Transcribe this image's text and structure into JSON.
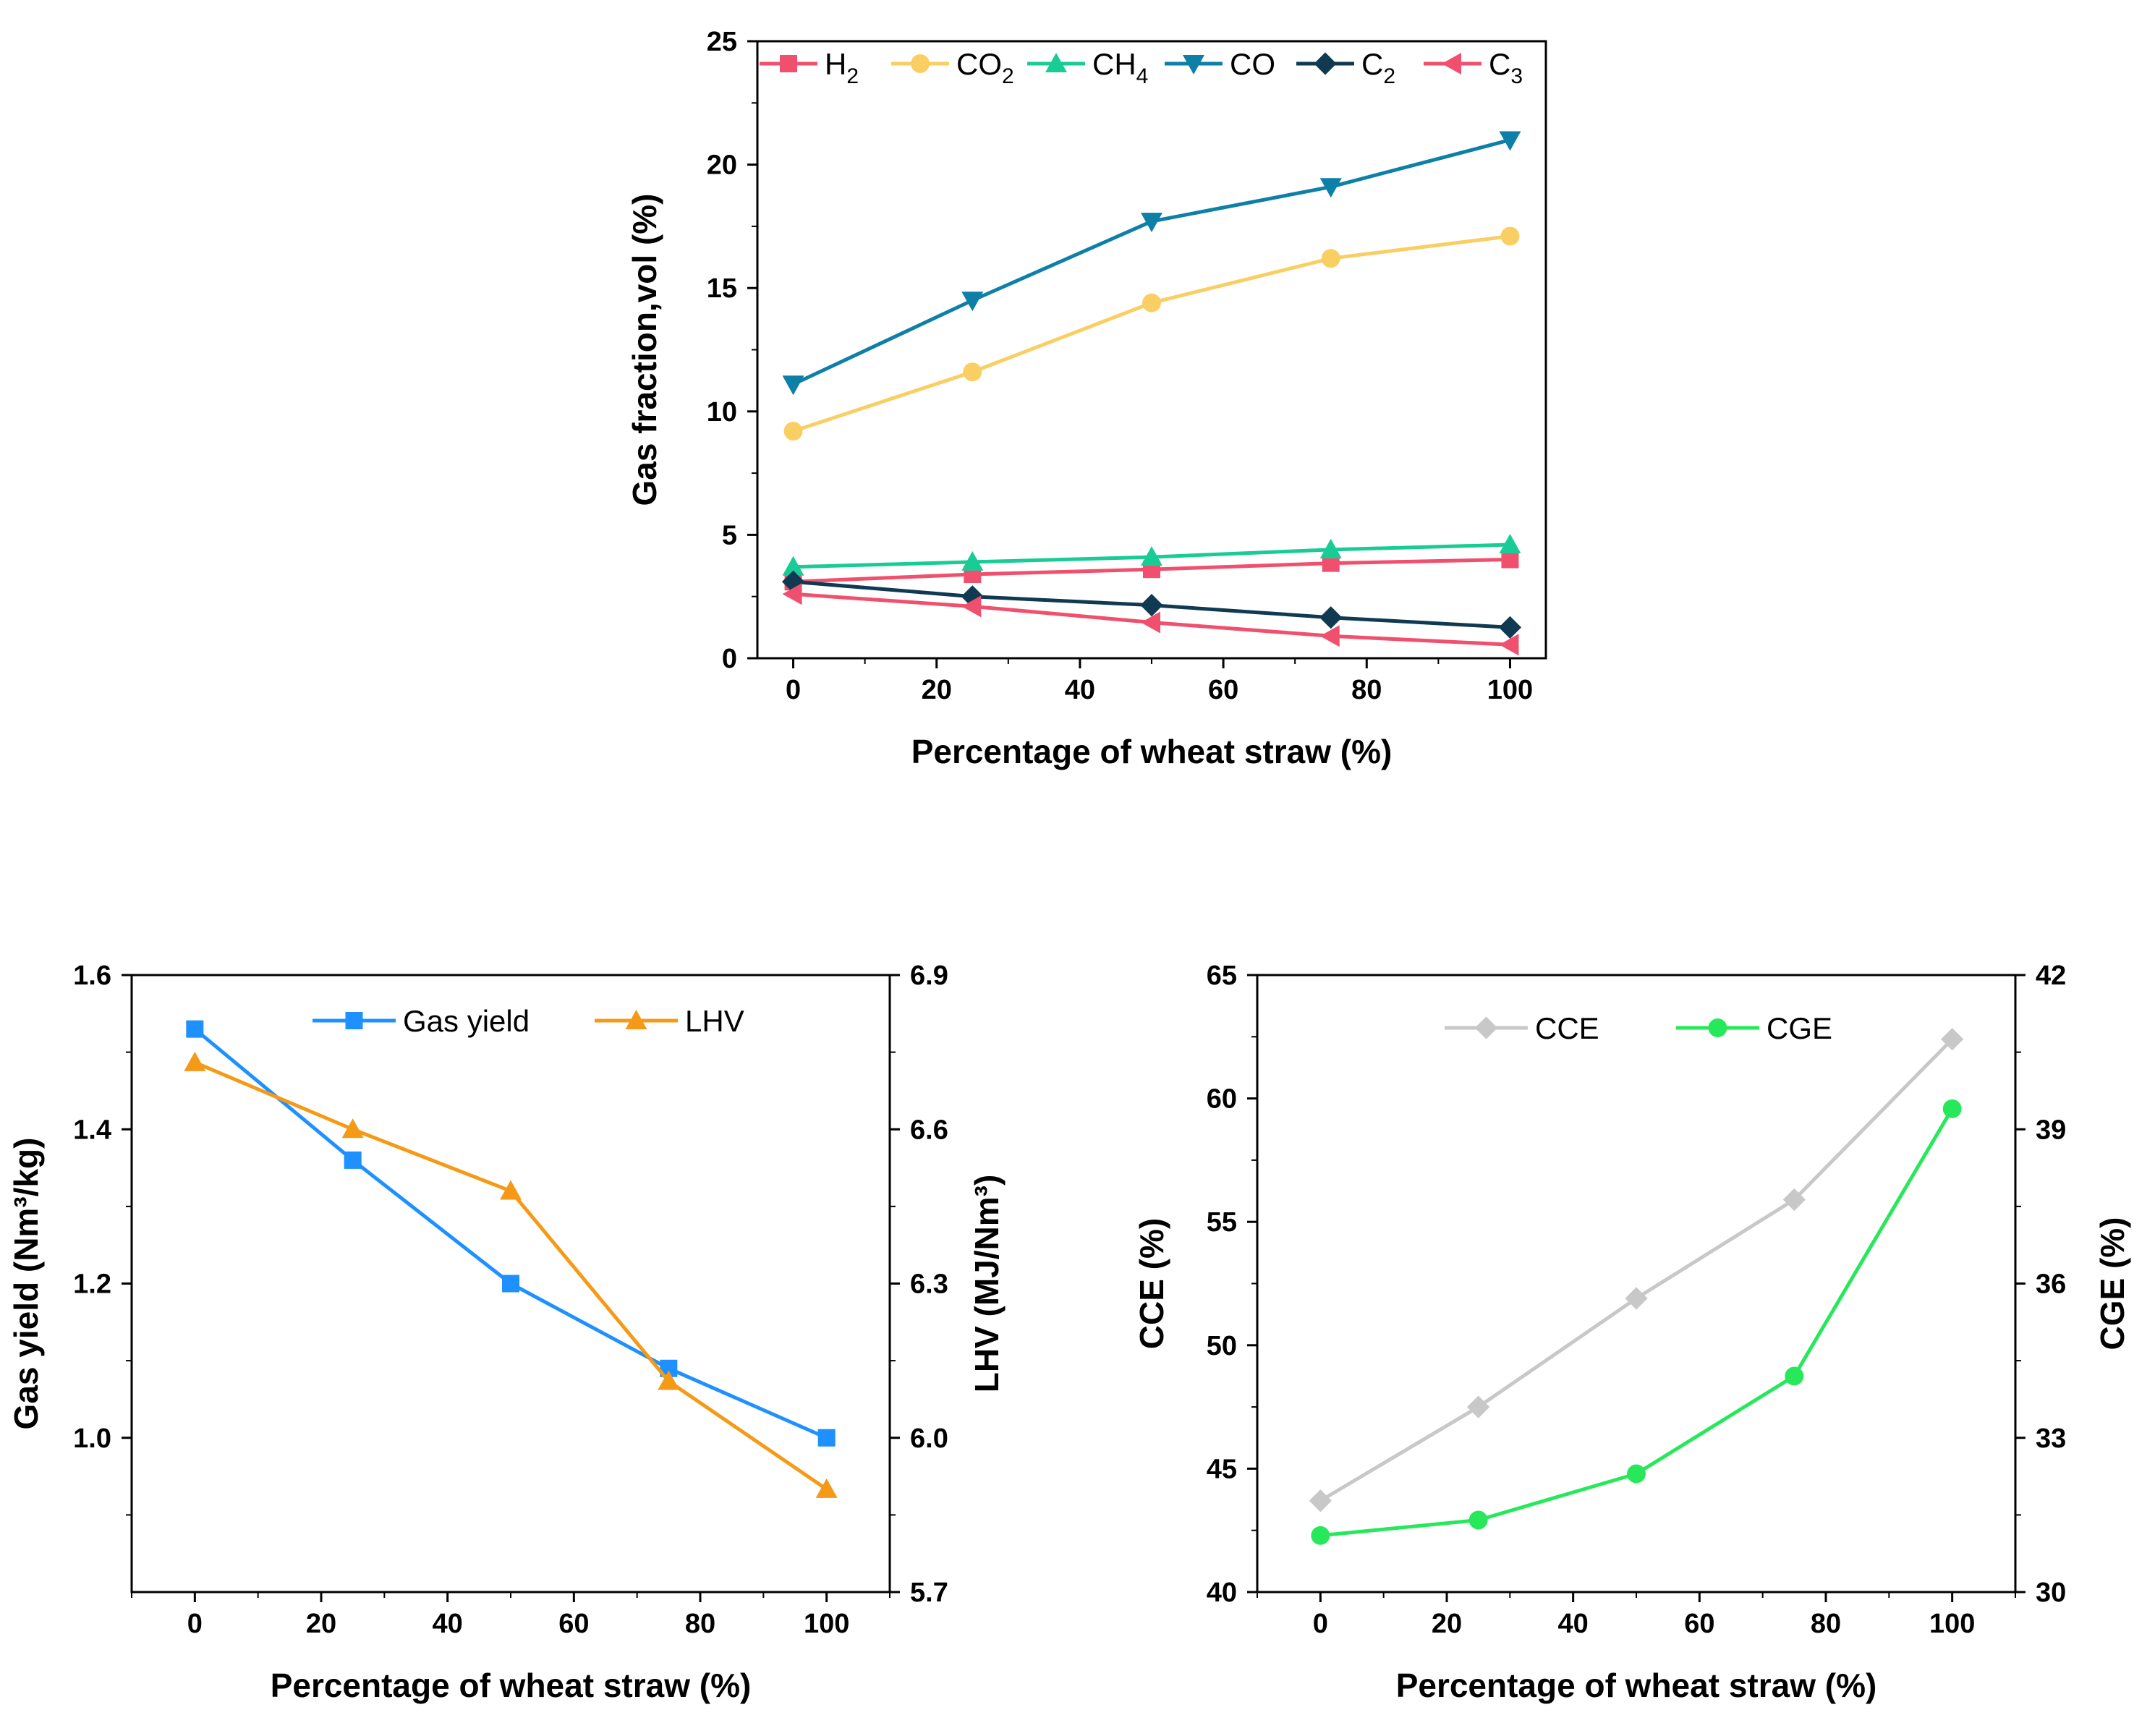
{
  "colors": {
    "h2": "#f0506e",
    "co2": "#f9cf63",
    "ch4": "#19cc96",
    "co": "#0e7fa6",
    "c2": "#0f3a52",
    "c3": "#f0506e",
    "gas_yield": "#1e90ff",
    "lhv": "#f59a17",
    "cce": "#c8c8c8",
    "cge": "#27e85a",
    "axis": "#000000"
  },
  "chart_data": [
    {
      "type": "line",
      "xlabel": "Percentage of wheat straw (%)",
      "ylabel": "Gas fraction,vol (%)",
      "xlim": [
        -5,
        105
      ],
      "ylim": [
        0,
        25
      ],
      "xticks": [
        "0",
        "20",
        "40",
        "60",
        "80",
        "100"
      ],
      "yticks": [
        "0",
        "5",
        "10",
        "15",
        "20",
        "25"
      ],
      "x": [
        0,
        25,
        50,
        75,
        100
      ],
      "legend_position": "top",
      "series": [
        {
          "key": "h2",
          "base": "H",
          "sub": "2",
          "marker": "square",
          "values": [
            3.1,
            3.4,
            3.6,
            3.85,
            4.0
          ]
        },
        {
          "key": "co2",
          "base": "CO",
          "sub": "2",
          "marker": "circle",
          "values": [
            9.2,
            11.6,
            14.4,
            16.2,
            17.1
          ]
        },
        {
          "key": "ch4",
          "base": "CH",
          "sub": "4",
          "marker": "triangle-up",
          "values": [
            3.7,
            3.9,
            4.1,
            4.4,
            4.6
          ]
        },
        {
          "key": "co",
          "base": "CO",
          "sub": "",
          "marker": "triangle-down",
          "values": [
            11.1,
            14.5,
            17.7,
            19.1,
            21.0
          ]
        },
        {
          "key": "c2",
          "base": "C",
          "sub": "2",
          "marker": "diamond",
          "values": [
            3.1,
            2.5,
            2.15,
            1.65,
            1.25
          ]
        },
        {
          "key": "c3",
          "base": "C",
          "sub": "3",
          "marker": "triangle-left",
          "values": [
            2.6,
            2.1,
            1.45,
            0.9,
            0.55
          ]
        }
      ]
    },
    {
      "type": "line",
      "xlabel": "Percentage of wheat straw (%)",
      "ylabel_left": "Gas yield (Nm³/kg)",
      "ylabel_right": "LHV (MJ/Nm³)",
      "xlim": [
        -10,
        110
      ],
      "ylim_left": [
        0.8,
        1.6
      ],
      "ylim_right": [
        5.7,
        6.9
      ],
      "xticks": [
        "0",
        "20",
        "40",
        "60",
        "80",
        "100"
      ],
      "yticks_left": [
        "1.0",
        "1.2",
        "1.4",
        "1.6"
      ],
      "yticks_right": [
        "5.7",
        "6.0",
        "6.3",
        "6.6",
        "6.9"
      ],
      "x": [
        0,
        25,
        50,
        75,
        100
      ],
      "legend_position": "top",
      "series": [
        {
          "key": "gas_yield",
          "name": "Gas yield",
          "axis": "left",
          "marker": "square",
          "values": [
            1.53,
            1.36,
            1.2,
            1.09,
            1.0
          ]
        },
        {
          "key": "lhv",
          "name": "LHV",
          "axis": "right",
          "marker": "triangle-up",
          "values": [
            6.73,
            6.6,
            6.48,
            6.11,
            5.9
          ]
        }
      ]
    },
    {
      "type": "line",
      "xlabel": "Percentage of wheat straw (%)",
      "ylabel_left": "CCE (%)",
      "ylabel_right": "CGE (%)",
      "xlim": [
        -10,
        110
      ],
      "ylim_left": [
        40,
        65
      ],
      "ylim_right": [
        30,
        42
      ],
      "xticks": [
        "0",
        "20",
        "40",
        "60",
        "80",
        "100"
      ],
      "yticks_left": [
        "40",
        "45",
        "50",
        "55",
        "60",
        "65"
      ],
      "yticks_right": [
        "30",
        "33",
        "36",
        "39",
        "42"
      ],
      "x": [
        0,
        25,
        50,
        75,
        100
      ],
      "legend_position": "top",
      "series": [
        {
          "key": "cce",
          "name": "CCE",
          "axis": "left",
          "marker": "diamond",
          "values": [
            43.7,
            47.5,
            51.9,
            55.9,
            62.4
          ]
        },
        {
          "key": "cge",
          "name": "CGE",
          "axis": "right",
          "marker": "circle",
          "values": [
            31.1,
            31.4,
            32.3,
            34.2,
            39.4
          ]
        }
      ]
    }
  ]
}
